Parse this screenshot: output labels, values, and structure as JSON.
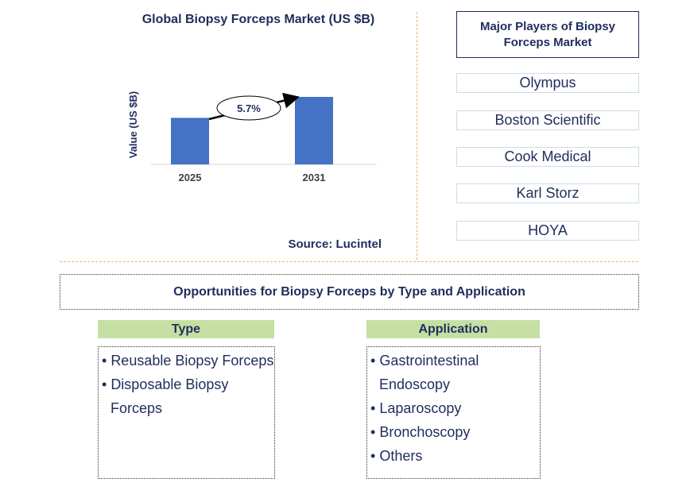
{
  "chart": {
    "title": "Global Biopsy Forceps Market (US $B)",
    "ylabel": "Value (US $B)",
    "source": "Source: Lucintel",
    "cagr_label": "5.7%",
    "bar_color": "#4472c4"
  },
  "chart_data": {
    "type": "bar",
    "title": "Global Biopsy Forceps Market (US $B)",
    "xlabel": "",
    "ylabel": "Value (US $B)",
    "categories": [
      "2025",
      "2031"
    ],
    "values": [
      1.0,
      1.45
    ],
    "annotation": "5.7%"
  },
  "players": {
    "title": "Major Players of Biopsy Forceps Market",
    "items": [
      "Olympus",
      "Boston Scientific",
      "Cook Medical",
      "Karl Storz",
      "HOYA"
    ]
  },
  "opportunities": {
    "title": "Opportunities for Biopsy Forceps by Type and Application",
    "type": {
      "heading": "Type",
      "items": [
        "Reusable Biopsy Forceps",
        "Disposable Biopsy Forceps"
      ]
    },
    "application": {
      "heading": "Application",
      "items": [
        "Gastrointestinal Endoscopy",
        "Laparoscopy",
        "Bronchoscopy",
        "Others"
      ]
    }
  }
}
